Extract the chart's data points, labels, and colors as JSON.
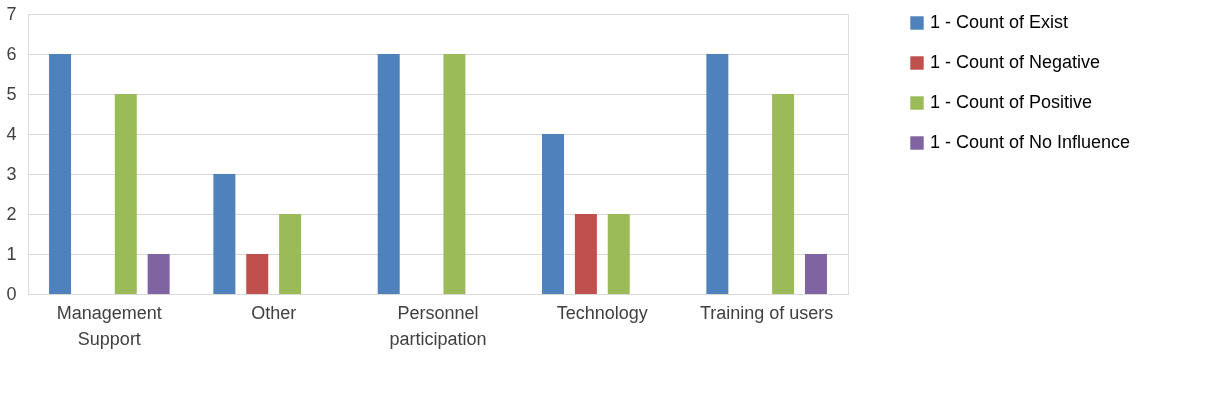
{
  "chart_data": {
    "type": "bar",
    "categories": [
      "Management Support",
      "Other",
      "Personnel participation",
      "Technology",
      "Training of users"
    ],
    "series": [
      {
        "name": "1 - Count of Exist",
        "color": "#4f81bd",
        "values": [
          6,
          3,
          6,
          4,
          6
        ]
      },
      {
        "name": "1 - Count of Negative",
        "color": "#c0504d",
        "values": [
          null,
          1,
          null,
          2,
          null
        ]
      },
      {
        "name": "1 - Count of Positive",
        "color": "#9bbb59",
        "values": [
          5,
          2,
          6,
          2,
          5
        ]
      },
      {
        "name": "1 - Count of No Influence",
        "color": "#8064a2",
        "values": [
          1,
          null,
          null,
          null,
          1
        ]
      }
    ],
    "ylim": [
      0,
      7
    ],
    "yticks": [
      0,
      1,
      2,
      3,
      4,
      5,
      6,
      7
    ],
    "grid": "y",
    "legend": "right"
  }
}
